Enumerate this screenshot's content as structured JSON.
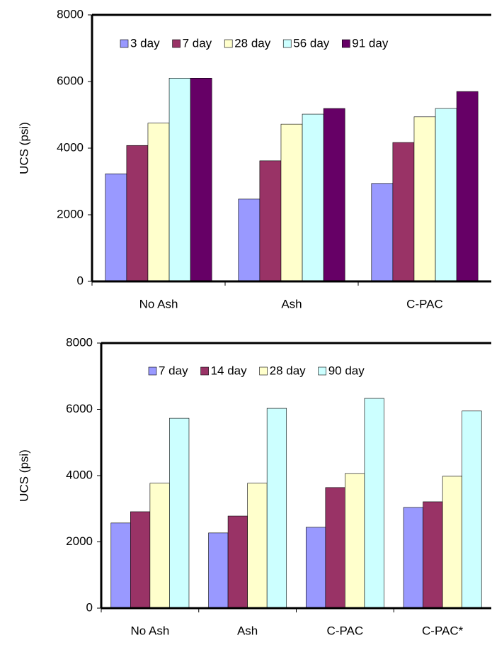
{
  "chart_data": [
    {
      "type": "bar",
      "y_label": "UCS (psi)",
      "categories": [
        "No Ash",
        "Ash",
        "C-PAC"
      ],
      "series": [
        {
          "name": "3 day",
          "color": "#9999ff",
          "values": [
            3230,
            2470,
            2940
          ]
        },
        {
          "name": "7 day",
          "color": "#993366",
          "values": [
            4080,
            3620,
            4170
          ]
        },
        {
          "name": "28 day",
          "color": "#ffffcc",
          "values": [
            4750,
            4720,
            4940
          ]
        },
        {
          "name": "56 day",
          "color": "#ccffff",
          "values": [
            6100,
            5020,
            5190
          ]
        },
        {
          "name": "91 day",
          "color": "#660066",
          "values": [
            6100,
            5190,
            5700
          ]
        }
      ],
      "ylim": [
        0,
        8000
      ],
      "yticks": [
        0,
        2000,
        4000,
        6000,
        8000
      ],
      "legend": "top"
    },
    {
      "type": "bar",
      "y_label": "UCS (psi)",
      "categories": [
        "No Ash",
        "Ash",
        "C-PAC",
        "C-PAC*"
      ],
      "series": [
        {
          "name": "7 day",
          "color": "#9999ff",
          "values": [
            2570,
            2270,
            2440,
            3040
          ]
        },
        {
          "name": "14 day",
          "color": "#993366",
          "values": [
            2910,
            2780,
            3640,
            3210
          ]
        },
        {
          "name": "28 day",
          "color": "#ffffcc",
          "values": [
            3770,
            3770,
            4060,
            3980
          ]
        },
        {
          "name": "90 day",
          "color": "#ccffff",
          "values": [
            5730,
            6030,
            6330,
            5950
          ]
        }
      ],
      "ylim": [
        0,
        8000
      ],
      "yticks": [
        0,
        2000,
        4000,
        6000,
        8000
      ],
      "legend": "top"
    }
  ]
}
